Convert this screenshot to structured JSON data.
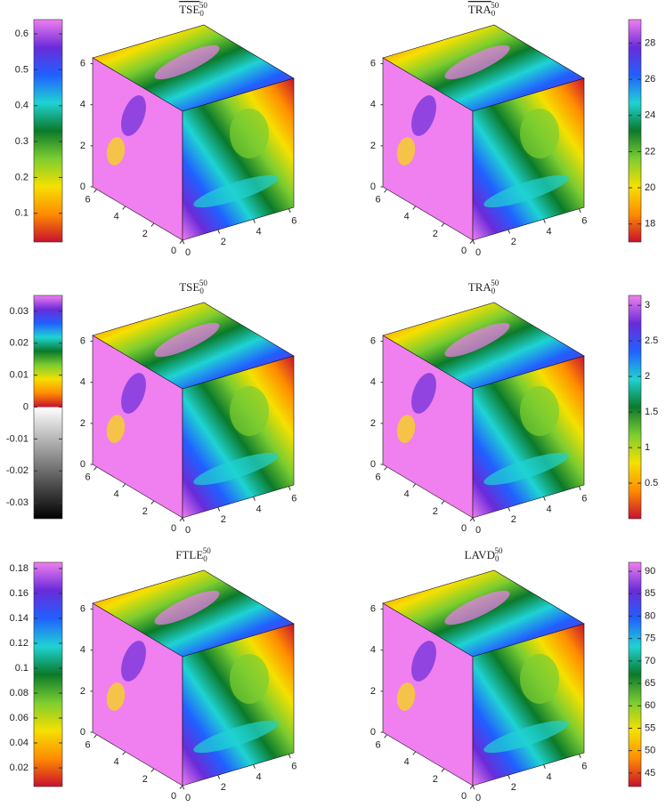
{
  "chart_data": [
    {
      "type": "cube",
      "title": {
        "text": "TSE",
        "sub": "0",
        "sup": "50",
        "overline": true
      },
      "colorbar": {
        "lim": [
          0.02,
          0.64
        ],
        "ticks": [
          0.1,
          0.2,
          0.3,
          0.4,
          0.5,
          0.6
        ],
        "colormap": [
          "#c8102e",
          "#ff8c00",
          "#f5e000",
          "#7ccd30",
          "#0a7a2a",
          "#1fd3d3",
          "#2060ff",
          "#6a2bd9",
          "#f07ff0"
        ]
      },
      "xlim": [
        0,
        6.2832
      ],
      "xticks": [
        0,
        2,
        4,
        6
      ],
      "ylim": [
        0,
        6.2832
      ],
      "yticks": [
        0,
        2,
        4,
        6
      ],
      "zlim": [
        0,
        6.2832
      ],
      "zticks": [
        0,
        2,
        4,
        6
      ]
    },
    {
      "type": "cube",
      "title": {
        "text": "TRA",
        "sub": "0",
        "sup": "50",
        "overline": true
      },
      "colorbar": {
        "lim": [
          17,
          29.3
        ],
        "ticks": [
          18,
          20,
          22,
          24,
          26,
          28
        ],
        "colormap": [
          "#c8102e",
          "#ff8c00",
          "#f5e000",
          "#7ccd30",
          "#0a7a2a",
          "#1fd3d3",
          "#2060ff",
          "#6a2bd9",
          "#f07ff0"
        ]
      },
      "xlim": [
        0,
        6.2832
      ],
      "xticks": [
        0,
        2,
        4,
        6
      ],
      "ylim": [
        0,
        6.2832
      ],
      "yticks": [
        0,
        2,
        4,
        6
      ],
      "zlim": [
        0,
        6.2832
      ],
      "zticks": [
        0,
        2,
        4,
        6
      ]
    },
    {
      "type": "cube",
      "title": {
        "text": "TSE",
        "sub": "0",
        "sup": "50",
        "overline": false
      },
      "colorbar": {
        "lim": [
          -0.035,
          0.035
        ],
        "ticks": [
          -0.03,
          -0.02,
          -0.01,
          0,
          0.01,
          0.02,
          0.03
        ],
        "colormap_negative": [
          "#000000",
          "#ffffff"
        ],
        "colormap": [
          "#c8102e",
          "#ff8c00",
          "#f5e000",
          "#7ccd30",
          "#0a7a2a",
          "#1fd3d3",
          "#2060ff",
          "#6a2bd9",
          "#f07ff0"
        ]
      },
      "xlim": [
        0,
        6.2832
      ],
      "xticks": [
        0,
        2,
        4,
        6
      ],
      "ylim": [
        0,
        6.2832
      ],
      "yticks": [
        0,
        2,
        4,
        6
      ],
      "zlim": [
        0,
        6.2832
      ],
      "zticks": [
        0,
        2,
        4,
        6
      ]
    },
    {
      "type": "cube",
      "title": {
        "text": "TRA",
        "sub": "0",
        "sup": "50",
        "overline": false
      },
      "colorbar": {
        "lim": [
          0,
          3.14
        ],
        "ticks": [
          0.5,
          1,
          1.5,
          2,
          2.5,
          3
        ],
        "colormap": [
          "#c8102e",
          "#ff8c00",
          "#f5e000",
          "#7ccd30",
          "#0a7a2a",
          "#1fd3d3",
          "#2060ff",
          "#6a2bd9",
          "#f07ff0"
        ]
      },
      "xlim": [
        0,
        6.2832
      ],
      "xticks": [
        0,
        2,
        4,
        6
      ],
      "ylim": [
        0,
        6.2832
      ],
      "yticks": [
        0,
        2,
        4,
        6
      ],
      "zlim": [
        0,
        6.2832
      ],
      "zticks": [
        0,
        2,
        4,
        6
      ]
    },
    {
      "type": "cube",
      "title": {
        "text": "FTLE",
        "sub": "0",
        "sup": "50",
        "overline": false
      },
      "colorbar": {
        "lim": [
          0.005,
          0.185
        ],
        "ticks": [
          0.02,
          0.04,
          0.06,
          0.08,
          0.1,
          0.12,
          0.14,
          0.16,
          0.18
        ],
        "colormap": [
          "#c8102e",
          "#ff8c00",
          "#f5e000",
          "#7ccd30",
          "#0a7a2a",
          "#1fd3d3",
          "#2060ff",
          "#6a2bd9",
          "#f07ff0"
        ]
      },
      "xlim": [
        0,
        6.2832
      ],
      "xticks": [
        0,
        2,
        4,
        6
      ],
      "ylim": [
        0,
        6.2832
      ],
      "yticks": [
        0,
        2,
        4,
        6
      ],
      "zlim": [
        0,
        6.2832
      ],
      "zticks": [
        0,
        2,
        4,
        6
      ]
    },
    {
      "type": "cube",
      "title": {
        "text": "LAVD",
        "sub": "0",
        "sup": "50",
        "overline": false
      },
      "colorbar": {
        "lim": [
          42,
          92
        ],
        "ticks": [
          45,
          50,
          55,
          60,
          65,
          70,
          75,
          80,
          85,
          90
        ],
        "colormap": [
          "#c8102e",
          "#ff8c00",
          "#f5e000",
          "#7ccd30",
          "#0a7a2a",
          "#1fd3d3",
          "#2060ff",
          "#6a2bd9",
          "#f07ff0"
        ]
      },
      "xlim": [
        0,
        6.2832
      ],
      "xticks": [
        0,
        2,
        4,
        6
      ],
      "ylim": [
        0,
        6.2832
      ],
      "yticks": [
        0,
        2,
        4,
        6
      ],
      "zlim": [
        0,
        6.2832
      ],
      "zticks": [
        0,
        2,
        4,
        6
      ]
    }
  ]
}
